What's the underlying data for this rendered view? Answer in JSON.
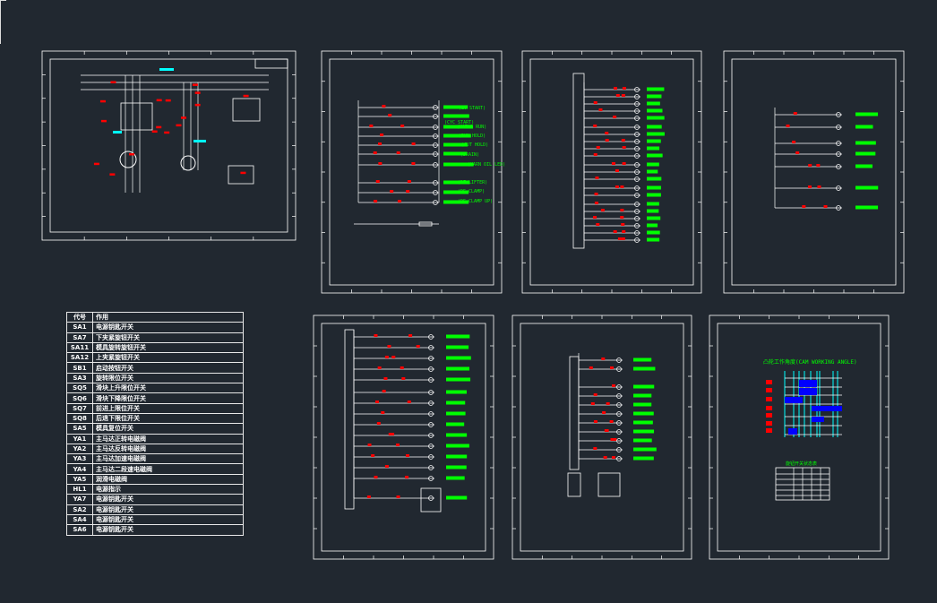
{
  "colors": {
    "background": "#212830",
    "line": "#ffffff",
    "label": "#00ff00",
    "mark": "#ff0000",
    "cyan": "#00ffff",
    "fill": "#0000ff"
  },
  "legend_table": {
    "headers": [
      "代号",
      "作用"
    ],
    "rows": [
      [
        "SA1",
        "电源钥匙开关"
      ],
      [
        "SA7",
        "下夹紧旋钮开关"
      ],
      [
        "SA11",
        "模具旋转旋钮开关"
      ],
      [
        "SA12",
        "上夹紧旋钮开关"
      ],
      [
        "SB1",
        "启动按钮开关"
      ],
      [
        "SA3",
        "旋转限位开关"
      ],
      [
        "SQ5",
        "滑块上升限位开关"
      ],
      [
        "SQ6",
        "滑块下降限位开关"
      ],
      [
        "SQ7",
        "前进上限位开关"
      ],
      [
        "SQ8",
        "后退下限位开关"
      ],
      [
        "SA5",
        "模具复位开关"
      ],
      [
        "YA1",
        "主马达正转电磁阀"
      ],
      [
        "YA2",
        "主马达反转电磁阀"
      ],
      [
        "YA3",
        "主马达加速电磁阀"
      ],
      [
        "YA4",
        "主马达二段速电磁阀"
      ],
      [
        "YA5",
        "润滑电磁阀"
      ],
      [
        "HL1",
        "电源指示"
      ],
      [
        "YA7",
        "电源钥匙开关"
      ],
      [
        "SA2",
        "电源钥匙开关"
      ],
      [
        "SA4",
        "电源钥匙开关"
      ],
      [
        "SA6",
        "电源钥匙开关"
      ]
    ]
  },
  "sheet2": {
    "labels": [
      "(EV START)",
      "(CYC START)",
      "(MOTOR RUN)",
      "(RUN HOLD)",
      "(CUT HOLD)",
      "(DRAIN)",
      "(WARN OIL LED)",
      "(DE LIFTER)",
      "(DE CLAMP)",
      "(DE CLAMP UP)"
    ]
  },
  "sheet7": {
    "cam_title": "凸轮工作角度(CAM WORKING ANGLE)",
    "table_title": "旋钮开关状态表"
  }
}
